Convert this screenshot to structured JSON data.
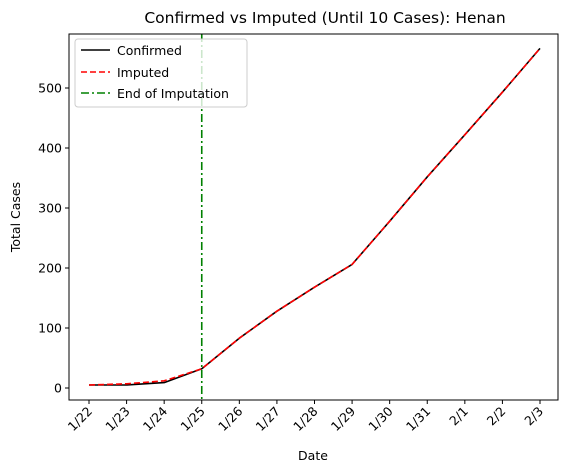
{
  "chart_data": {
    "type": "line",
    "title": "Confirmed vs Imputed (Until 10 Cases): Henan",
    "xlabel": "Date",
    "ylabel": "Total Cases",
    "categories": [
      "1/22",
      "1/23",
      "1/24",
      "1/25",
      "1/26",
      "1/27",
      "1/28",
      "1/29",
      "1/30",
      "1/31",
      "2/1",
      "2/2",
      "2/3"
    ],
    "ylim": [
      -20,
      590
    ],
    "yticks": [
      0,
      100,
      200,
      300,
      400,
      500
    ],
    "grid": false,
    "legend_position": "top-left",
    "series": [
      {
        "name": "Confirmed",
        "style": "solid",
        "color": "#000000",
        "values": [
          5,
          5,
          9,
          32,
          83,
          128,
          168,
          206,
          278,
          352,
          422,
          493,
          566
        ]
      },
      {
        "name": "Imputed",
        "style": "dashed",
        "color": "#ff0000",
        "values": [
          5,
          7,
          12,
          32,
          83,
          128,
          168,
          206,
          278,
          352,
          422,
          493,
          566
        ]
      }
    ],
    "vline": {
      "name": "End of Imputation",
      "at": "1/25",
      "style": "dashdot",
      "color": "#008000"
    }
  }
}
